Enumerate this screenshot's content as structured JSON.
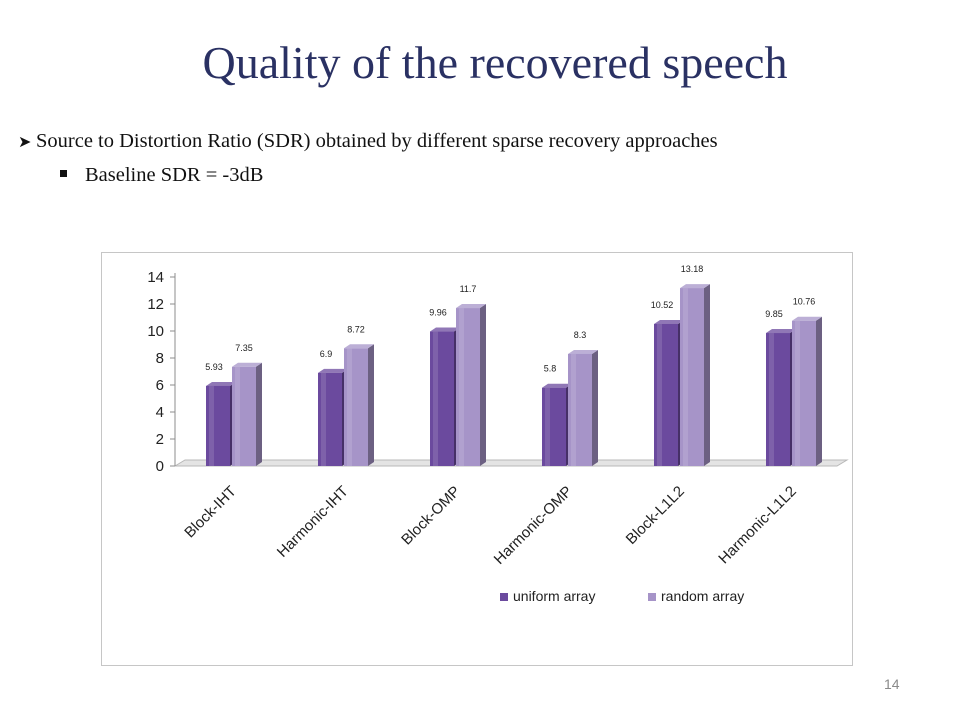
{
  "slide": {
    "title": "Quality of the recovered speech",
    "bullet_main": "Source to Distortion Ratio (SDR) obtained by different sparse recovery approaches",
    "bullet_sub": "Baseline SDR = -3dB",
    "page_number": "14"
  },
  "chart_data": {
    "type": "bar",
    "categories": [
      "Block-IHT",
      "Harmonic-IHT",
      "Block-OMP",
      "Harmonic-OMP",
      "Block-L1L2",
      "Harmonic-L1L2"
    ],
    "series": [
      {
        "name": "uniform array",
        "values": [
          5.93,
          6.9,
          9.96,
          5.8,
          10.52,
          9.85
        ],
        "color": "#6b4a9e"
      },
      {
        "name": "random array",
        "values": [
          7.35,
          8.72,
          11.7,
          8.3,
          13.18,
          10.76
        ],
        "color": "#a694c8"
      }
    ],
    "data_labels": [
      [
        "5.93",
        "6.9",
        "9.96",
        "5.8",
        "10.52",
        "9.85"
      ],
      [
        "7.35",
        "8.72",
        "11.7",
        "8.3",
        "13.18",
        "10.76"
      ]
    ],
    "ylim": [
      0,
      14
    ],
    "yticks": [
      "0",
      "2",
      "4",
      "6",
      "8",
      "10",
      "12",
      "14"
    ],
    "grid": false,
    "legend_position": "bottom-right",
    "style": "3d-clustered-bar"
  }
}
